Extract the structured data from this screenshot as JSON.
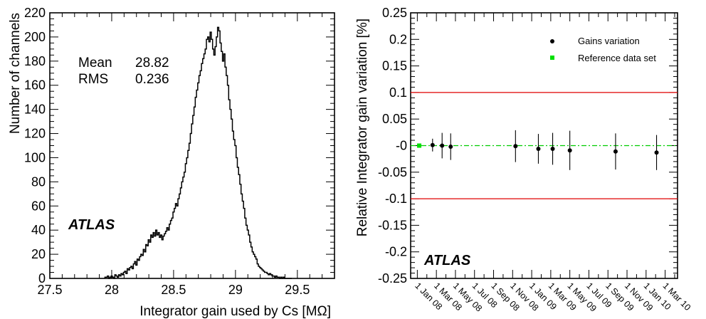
{
  "chart_data": [
    {
      "type": "histogram",
      "xlabel": "Integrator gain used by Cs [MΩ]",
      "ylabel": "Number of channels",
      "xlim": [
        27.5,
        29.8
      ],
      "ylim": [
        0,
        220
      ],
      "xticks": [
        "27.5",
        "28",
        "28.5",
        "29",
        "29.5"
      ],
      "yticks": [
        "0",
        "20",
        "40",
        "60",
        "80",
        "100",
        "120",
        "140",
        "160",
        "180",
        "200",
        "220"
      ],
      "stats": [
        {
          "label": "Mean",
          "value": "28.82"
        },
        {
          "label": "RMS",
          "value": "0.236"
        }
      ],
      "watermark": "ATLAS",
      "bin_width": 0.01,
      "bins_x": [
        27.95,
        27.96,
        27.97,
        27.98,
        27.99,
        28.0,
        28.01,
        28.02,
        28.03,
        28.04,
        28.05,
        28.06,
        28.07,
        28.08,
        28.09,
        28.1,
        28.11,
        28.12,
        28.13,
        28.14,
        28.15,
        28.16,
        28.17,
        28.18,
        28.19,
        28.2,
        28.21,
        28.22,
        28.23,
        28.24,
        28.25,
        28.26,
        28.27,
        28.28,
        28.29,
        28.3,
        28.31,
        28.32,
        28.33,
        28.34,
        28.35,
        28.36,
        28.37,
        28.38,
        28.39,
        28.4,
        28.41,
        28.42,
        28.43,
        28.44,
        28.45,
        28.46,
        28.47,
        28.48,
        28.49,
        28.5,
        28.51,
        28.52,
        28.53,
        28.54,
        28.55,
        28.56,
        28.57,
        28.58,
        28.59,
        28.6,
        28.61,
        28.62,
        28.63,
        28.64,
        28.65,
        28.66,
        28.67,
        28.68,
        28.69,
        28.7,
        28.71,
        28.72,
        28.73,
        28.74,
        28.75,
        28.76,
        28.77,
        28.78,
        28.79,
        28.8,
        28.81,
        28.82,
        28.83,
        28.84,
        28.85,
        28.86,
        28.87,
        28.88,
        28.89,
        28.9,
        28.91,
        28.92,
        28.93,
        28.94,
        28.95,
        28.96,
        28.97,
        28.98,
        28.99,
        29.0,
        29.01,
        29.02,
        29.03,
        29.04,
        29.05,
        29.06,
        29.07,
        29.08,
        29.09,
        29.1,
        29.11,
        29.12,
        29.13,
        29.14,
        29.15,
        29.16,
        29.17,
        29.18,
        29.19,
        29.2,
        29.21,
        29.22,
        29.23,
        29.24,
        29.25,
        29.26,
        29.27,
        29.28,
        29.29,
        29.3,
        29.31,
        29.32,
        29.33,
        29.34,
        29.35,
        29.36,
        29.37,
        29.38,
        29.39,
        29.4,
        29.41,
        29.42,
        29.43,
        29.44,
        29.45
      ],
      "bins_y": [
        1,
        1,
        2,
        0,
        1,
        2,
        1,
        0,
        3,
        2,
        1,
        3,
        2,
        4,
        3,
        5,
        6,
        4,
        8,
        7,
        9,
        10,
        8,
        12,
        14,
        11,
        16,
        15,
        18,
        20,
        19,
        24,
        22,
        28,
        27,
        32,
        30,
        36,
        34,
        38,
        35,
        40,
        36,
        38,
        34,
        36,
        32,
        35,
        37,
        39,
        42,
        40,
        45,
        48,
        50,
        55,
        58,
        62,
        60,
        66,
        70,
        75,
        80,
        84,
        88,
        95,
        100,
        106,
        112,
        120,
        128,
        135,
        142,
        150,
        156,
        162,
        168,
        172,
        178,
        182,
        186,
        190,
        198,
        200,
        196,
        204,
        198,
        190,
        185,
        192,
        200,
        208,
        205,
        195,
        188,
        180,
        186,
        175,
        168,
        160,
        148,
        140,
        132,
        122,
        115,
        110,
        100,
        92,
        86,
        78,
        70,
        64,
        58,
        50,
        44,
        40,
        36,
        30,
        26,
        22,
        20,
        18,
        16,
        12,
        10,
        9,
        8,
        7,
        6,
        5,
        5,
        4,
        3,
        4,
        3,
        2,
        2,
        1,
        2,
        1,
        1,
        0,
        1,
        0,
        1,
        0,
        0,
        0,
        0,
        0,
        0
      ]
    },
    {
      "type": "scatter",
      "ylabel": "Relative Integrator gain variation [%]",
      "ylim": [
        -0.25,
        0.25
      ],
      "yticks": [
        "-0.25",
        "-0.2",
        "-0.15",
        "-0.1",
        "-0.05",
        "-0",
        "0.05",
        "0.1",
        "0.15",
        "0.2",
        "0.25"
      ],
      "xticks": [
        "1 Jan 08",
        "1 Mar 08",
        "1 May 08",
        "1 Jul 08",
        "1 Sep 08",
        "1 Nov 08",
        "1 Jan 09",
        "1 Mar 09",
        "1 May 09",
        "1 Jul 09",
        "1 Sep 09",
        "1 Nov 09",
        "1 Jan 10",
        "1 Mar 10"
      ],
      "xlim_months": [
        -0.7,
        27.3
      ],
      "legend": {
        "placement": "top-right",
        "entries": [
          {
            "name": "Gains variation",
            "color": "#000000"
          },
          {
            "name": "Reference data set",
            "color": "#00e000"
          }
        ]
      },
      "reference_lines": [
        {
          "y": 0.1,
          "color": "#e00000"
        },
        {
          "y": -0.1,
          "color": "#e00000"
        },
        {
          "y": 0.0,
          "color": "#00cc00",
          "style": "dash-dot"
        }
      ],
      "series": [
        {
          "name": "Gains variation",
          "x_months": [
            1.6,
            2.6,
            3.5,
            10.3,
            12.7,
            14.2,
            16.0,
            20.8,
            25.1
          ],
          "y": [
            0.001,
            0.0,
            -0.002,
            -0.001,
            -0.006,
            -0.006,
            -0.009,
            -0.011,
            -0.013
          ],
          "err": [
            0.012,
            0.024,
            0.025,
            0.03,
            0.028,
            0.03,
            0.037,
            0.034,
            0.033
          ]
        },
        {
          "name": "Reference data set",
          "x_months": [
            0.2
          ],
          "y": [
            0.0
          ],
          "err": [
            0
          ]
        }
      ],
      "watermark": "ATLAS"
    }
  ]
}
